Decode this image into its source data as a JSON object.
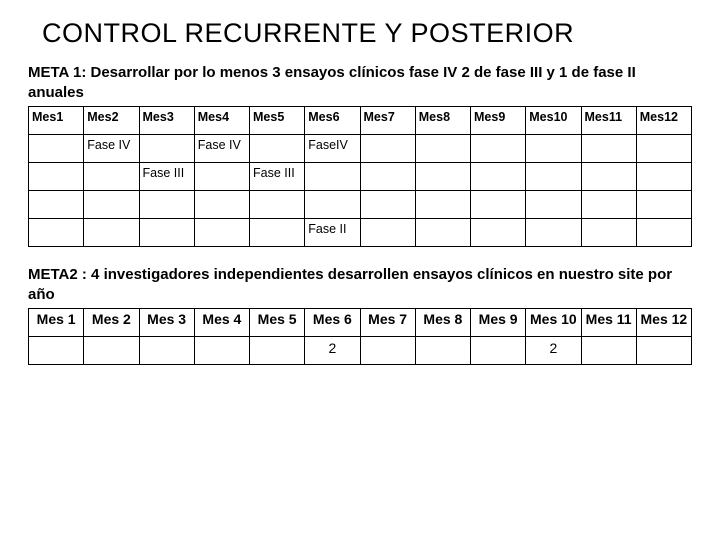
{
  "title": "CONTROL RECURRENTE Y POSTERIOR",
  "meta1": {
    "text": "META 1: Desarrollar por lo menos 3 ensayos clínicos  fase IV 2 de fase III y 1 de fase II  anuales",
    "headers": [
      "Mes1",
      "Mes2",
      "Mes3",
      "Mes4",
      "Mes5",
      "Mes6",
      "Mes7",
      "Mes8",
      "Mes9",
      "Mes10",
      "Mes11",
      "Mes12"
    ],
    "rows": [
      [
        "",
        "Fase IV",
        "",
        "Fase IV",
        "",
        "FaseIV",
        "",
        "",
        "",
        "",
        "",
        ""
      ],
      [
        "",
        "",
        "Fase III",
        "",
        "Fase III",
        "",
        "",
        "",
        "",
        "",
        "",
        ""
      ],
      [
        "",
        "",
        "",
        "",
        "",
        "",
        "",
        "",
        "",
        "",
        "",
        ""
      ],
      [
        "",
        "",
        "",
        "",
        "",
        "Fase II",
        "",
        "",
        "",
        "",
        "",
        ""
      ]
    ]
  },
  "meta2": {
    "text": "META2 : 4 investigadores independientes desarrollen ensayos clínicos en nuestro site por año",
    "headers": [
      "Mes 1",
      "Mes 2",
      "Mes 3",
      "Mes 4",
      "Mes 5",
      "Mes 6",
      "Mes 7",
      "Mes 8",
      "Mes 9",
      "Mes 10",
      "Mes 11",
      "Mes 12"
    ],
    "rows": [
      [
        "",
        "",
        "",
        "",
        "",
        "2",
        "",
        "",
        "",
        "2",
        "",
        ""
      ]
    ]
  },
  "colors": {
    "border": "#000000",
    "bg": "#ffffff",
    "text": "#000000"
  }
}
